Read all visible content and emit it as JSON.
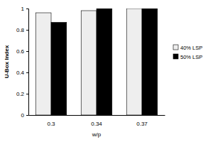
{
  "chart_data": {
    "type": "bar",
    "x_label": "w/p",
    "y_label": "U-Box Index",
    "categories": [
      "0.3",
      "0.34",
      "0.37"
    ],
    "series": [
      {
        "name": "40% LSP",
        "color": "#eeeeee",
        "values": [
          0.96,
          0.98,
          1.0
        ]
      },
      {
        "name": "50% LSP",
        "color": "#000000",
        "values": [
          0.87,
          1.0,
          1.0
        ]
      }
    ],
    "ylim": [
      0,
      1
    ],
    "yticks": [
      0,
      0.2,
      0.4,
      0.6,
      0.8,
      1
    ],
    "grid": false,
    "legend": "right"
  }
}
